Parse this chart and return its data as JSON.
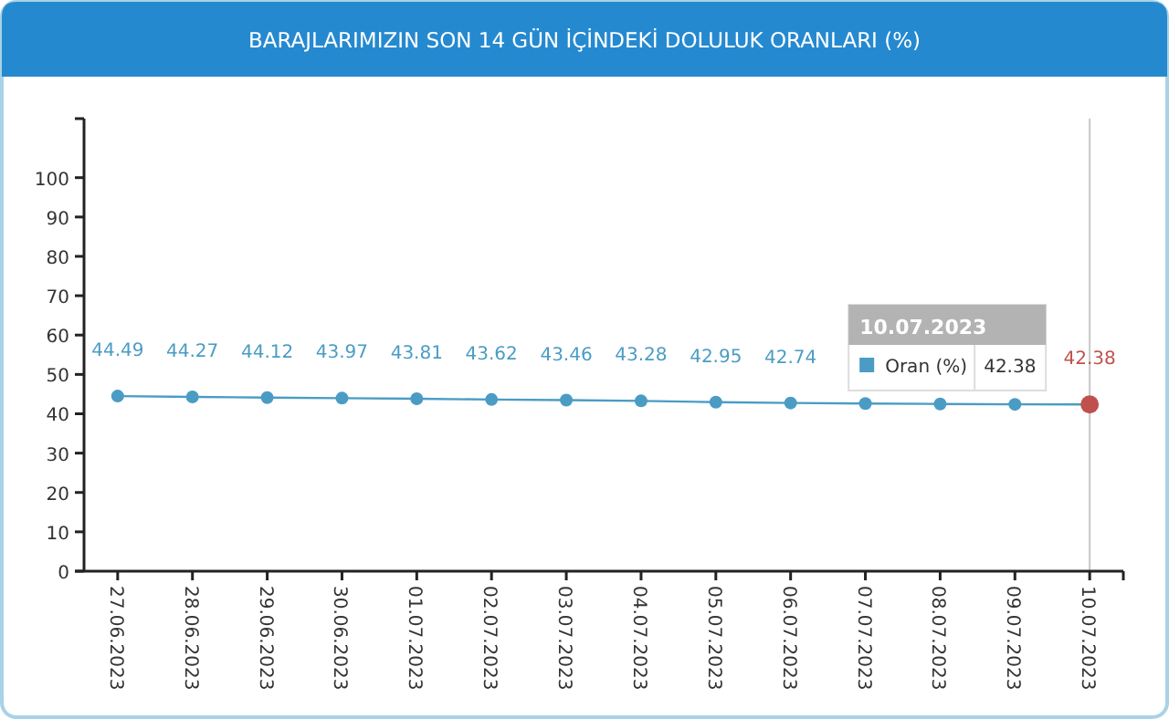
{
  "chart_data": {
    "type": "line",
    "title": "BARAJLARIMIZIN SON 14 GÜN İÇİNDEKİ DOLULUK ORANLARI (%)",
    "categories": [
      "27.06.2023",
      "28.06.2023",
      "29.06.2023",
      "30.06.2023",
      "01.07.2023",
      "02.07.2023",
      "03.07.2023",
      "04.07.2023",
      "05.07.2023",
      "06.07.2023",
      "07.07.2023",
      "08.07.2023",
      "09.07.2023",
      "10.07.2023"
    ],
    "series": [
      {
        "name": "Oran (%)",
        "color": "#4a9cc4",
        "values": [
          44.49,
          44.27,
          44.12,
          43.97,
          43.81,
          43.62,
          43.46,
          43.28,
          42.95,
          42.74,
          42.6,
          42.5,
          42.4,
          42.38
        ],
        "colors": [
          "#4a9cc4",
          "#4a9cc4",
          "#4a9cc4",
          "#4a9cc4",
          "#4a9cc4",
          "#4a9cc4",
          "#4a9cc4",
          "#4a9cc4",
          "#4a9cc4",
          "#4a9cc4",
          "#4a9cc4",
          "#4a9cc4",
          "#4a9cc4",
          "#c0504d"
        ],
        "value_labels": [
          "44.49",
          "44.27",
          "44.12",
          "43.97",
          "43.81",
          "43.62",
          "43.46",
          "43.28",
          "42.95",
          "42.74",
          null,
          null,
          null,
          "42.38"
        ]
      }
    ],
    "ylim": [
      0,
      115
    ],
    "yticks": [
      0,
      10,
      20,
      30,
      40,
      50,
      60,
      70,
      80,
      90,
      100,
      {
        "value": 115,
        "label": null
      }
    ],
    "ref_lines": [
      {
        "axis": "x",
        "value": "10.07.2023",
        "color": "#c8c8c8"
      }
    ],
    "marker": "circle",
    "legend": "right",
    "grid": false
  }
}
